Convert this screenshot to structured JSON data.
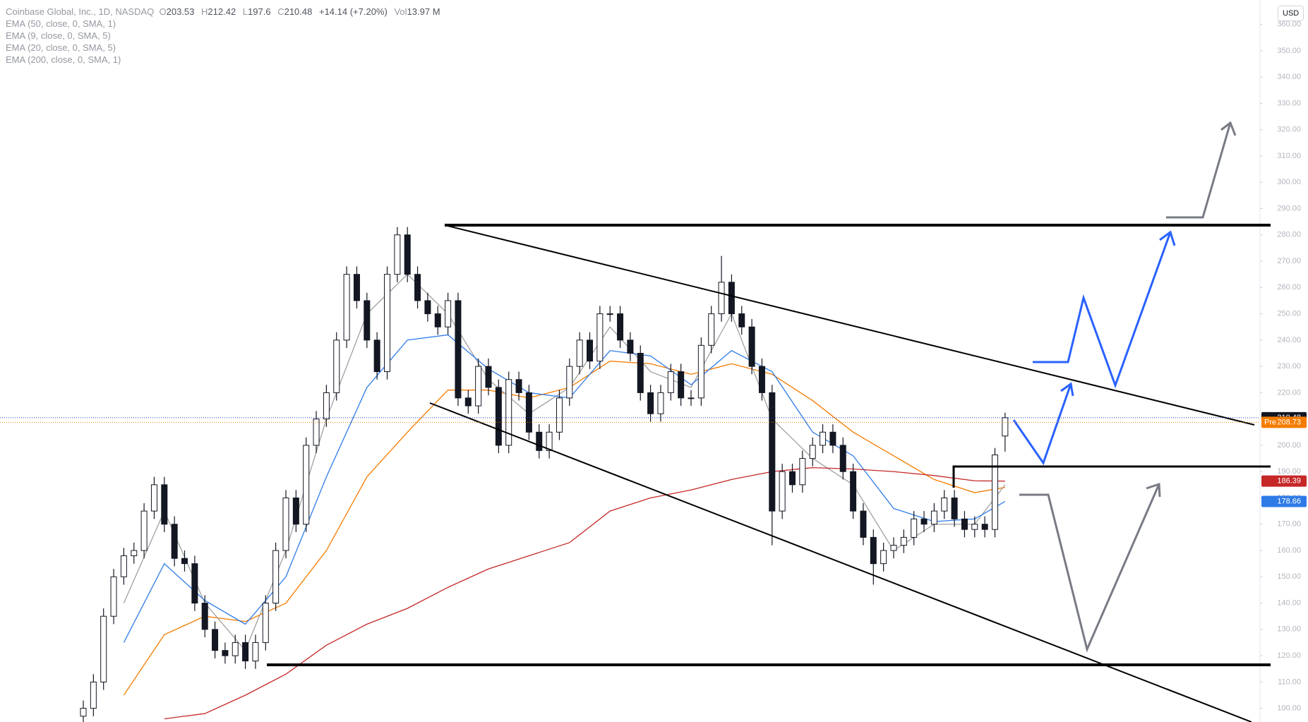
{
  "chart_data": {
    "type": "candlestick",
    "title": "Coinbase Global, Inc., 1D, NASDAQ",
    "currency": "USD",
    "ohlc": {
      "open_label": "O",
      "open": 203.53,
      "high_label": "H",
      "high": 212.42,
      "low_label": "L",
      "low": 197.6,
      "close_label": "C",
      "close": 210.48,
      "change": "+14.14 (+7.20%)",
      "volume_label": "Vol",
      "volume": "13.97 M"
    },
    "candles": {
      "open": [
        97,
        100,
        110,
        135,
        150,
        158,
        160,
        175,
        185,
        170,
        157,
        155,
        140,
        130,
        122,
        120,
        125,
        118,
        125,
        140,
        160,
        180,
        170,
        200,
        210,
        220,
        240,
        265,
        255,
        240,
        228,
        265,
        280,
        265,
        255,
        250,
        245,
        255,
        218,
        215,
        230,
        222,
        200,
        225,
        220,
        205,
        198,
        205,
        218,
        230,
        240,
        232,
        250,
        250,
        240,
        235,
        220,
        212,
        220,
        228,
        218,
        218,
        238,
        250,
        262,
        250,
        245,
        230,
        220,
        175,
        190,
        185,
        195,
        200,
        205,
        200,
        190,
        175,
        165,
        155,
        160,
        162,
        165,
        172,
        170,
        175,
        180,
        172,
        168,
        170,
        168,
        203.53
      ],
      "high": [
        103,
        113,
        138,
        153,
        161,
        163,
        178,
        188,
        188,
        173,
        160,
        158,
        143,
        133,
        125,
        128,
        128,
        128,
        143,
        163,
        183,
        183,
        203,
        213,
        223,
        243,
        268,
        268,
        258,
        243,
        268,
        283,
        283,
        268,
        258,
        253,
        258,
        258,
        221,
        233,
        233,
        225,
        228,
        228,
        223,
        208,
        208,
        221,
        233,
        243,
        243,
        253,
        253,
        253,
        243,
        238,
        223,
        223,
        231,
        231,
        221,
        241,
        253,
        272,
        265,
        253,
        248,
        233,
        223,
        193,
        193,
        198,
        203,
        208,
        208,
        203,
        193,
        178,
        168,
        163,
        165,
        168,
        175,
        175,
        178,
        183,
        183,
        175,
        173,
        173,
        199,
        212.42
      ],
      "low": [
        94,
        97,
        107,
        132,
        147,
        155,
        157,
        172,
        167,
        154,
        152,
        137,
        127,
        119,
        117,
        117,
        115,
        115,
        122,
        137,
        157,
        167,
        167,
        197,
        207,
        217,
        237,
        252,
        237,
        225,
        225,
        262,
        262,
        252,
        247,
        242,
        242,
        215,
        212,
        212,
        219,
        197,
        197,
        217,
        202,
        195,
        195,
        202,
        215,
        227,
        229,
        229,
        247,
        237,
        232,
        217,
        209,
        209,
        217,
        215,
        215,
        215,
        235,
        247,
        247,
        242,
        227,
        217,
        162,
        172,
        182,
        182,
        192,
        197,
        197,
        187,
        172,
        162,
        147,
        152,
        157,
        159,
        162,
        167,
        167,
        172,
        169,
        165,
        165,
        165,
        165,
        197.6
      ],
      "close": [
        100,
        110,
        135,
        150,
        158,
        160,
        175,
        185,
        170,
        157,
        155,
        140,
        130,
        122,
        120,
        125,
        118,
        125,
        140,
        160,
        180,
        170,
        200,
        210,
        220,
        240,
        265,
        255,
        240,
        228,
        265,
        280,
        265,
        255,
        250,
        245,
        255,
        218,
        215,
        230,
        222,
        200,
        225,
        220,
        205,
        198,
        205,
        218,
        230,
        240,
        232,
        250,
        250,
        240,
        235,
        220,
        212,
        220,
        228,
        218,
        218,
        238,
        250,
        262,
        250,
        245,
        230,
        220,
        175,
        190,
        185,
        195,
        200,
        205,
        200,
        190,
        175,
        165,
        155,
        160,
        162,
        165,
        172,
        170,
        175,
        180,
        172,
        168,
        170,
        168,
        196.34,
        210.48
      ]
    },
    "series": [
      {
        "name": "EMA (50, close, 0, SMA, 1)",
        "color": "#f57c00",
        "x": [
          0,
          4,
          8,
          12,
          16,
          20,
          24,
          28,
          32,
          36,
          40,
          44,
          48,
          52,
          56,
          60,
          64,
          68,
          72,
          76,
          80,
          84,
          88,
          91
        ],
        "values": [
          null,
          105,
          128,
          135,
          133,
          140,
          160,
          188,
          205,
          221,
          221,
          218,
          222,
          232,
          231,
          227,
          231,
          227,
          217,
          205,
          196,
          187,
          182,
          184
        ]
      },
      {
        "name": "EMA (9, close, 0, SMA, 5)",
        "color": "#a0a0a0",
        "x": [
          0,
          4,
          8,
          12,
          16,
          20,
          24,
          28,
          32,
          36,
          40,
          44,
          48,
          52,
          56,
          60,
          64,
          68,
          72,
          76,
          80,
          84,
          88,
          91
        ],
        "values": [
          null,
          140,
          175,
          140,
          122,
          160,
          210,
          250,
          265,
          250,
          225,
          212,
          222,
          245,
          228,
          222,
          250,
          210,
          195,
          185,
          160,
          170,
          170,
          185
        ]
      },
      {
        "name": "EMA (20, close, 0, SMA, 5)",
        "color": "#2e7be8",
        "x": [
          0,
          4,
          8,
          12,
          16,
          20,
          24,
          28,
          32,
          36,
          40,
          44,
          48,
          52,
          56,
          60,
          64,
          68,
          72,
          76,
          80,
          84,
          88,
          91
        ],
        "values": [
          null,
          125,
          155,
          141,
          132,
          150,
          188,
          222,
          240,
          242,
          229,
          220,
          218,
          236,
          234,
          223,
          236,
          228,
          205,
          196,
          176,
          171,
          172,
          178.66
        ]
      },
      {
        "name": "EMA (200, close, 0, SMA, 1)",
        "color": "#c62828",
        "x": [
          0,
          4,
          8,
          12,
          16,
          20,
          24,
          28,
          32,
          36,
          40,
          44,
          48,
          52,
          56,
          60,
          64,
          68,
          72,
          76,
          80,
          84,
          88,
          91
        ],
        "values": [
          null,
          null,
          96,
          98,
          105,
          113,
          124,
          132,
          138,
          146,
          153,
          158,
          163,
          175,
          180,
          183,
          187,
          190,
          191.5,
          191,
          190,
          188.5,
          186.5,
          186.39
        ]
      }
    ],
    "pre": {
      "label": "Pre",
      "value": 208.73
    },
    "ylim": [
      94.8,
      369.3
    ],
    "yticks": [
      {
        "value": 100,
        "label": "100.00"
      },
      {
        "value": 110,
        "label": "110.00"
      },
      {
        "value": 120,
        "label": "120.00"
      },
      {
        "value": 130,
        "label": "130.00"
      },
      {
        "value": 140,
        "label": "140.00"
      },
      {
        "value": 150,
        "label": "150.00"
      },
      {
        "value": 160,
        "label": "160.00"
      },
      {
        "value": 170,
        "label": "170.00"
      },
      {
        "value": 180,
        "label": "180.00"
      },
      {
        "value": 190,
        "label": "190.00"
      },
      {
        "value": 200,
        "label": "200.00"
      },
      {
        "value": 210,
        "label": "210.00"
      },
      {
        "value": 220,
        "label": "220.00"
      },
      {
        "value": 230,
        "label": "230.00"
      },
      {
        "value": 240,
        "label": "240.00"
      },
      {
        "value": 250,
        "label": "250.00"
      },
      {
        "value": 260,
        "label": "260.00"
      },
      {
        "value": 270,
        "label": "270.00"
      },
      {
        "value": 280,
        "label": "280.00"
      },
      {
        "value": 290,
        "label": "290.00"
      },
      {
        "value": 300,
        "label": "300.00"
      },
      {
        "value": 310,
        "label": "310.00"
      },
      {
        "value": 320,
        "label": "320.00"
      },
      {
        "value": 330,
        "label": "330.00"
      },
      {
        "value": 340,
        "label": "340.00"
      },
      {
        "value": 350,
        "label": "350.00"
      },
      {
        "value": 360,
        "label": "360.00"
      }
    ],
    "up_color": "#ffffff",
    "down_color": "#131722"
  }
}
